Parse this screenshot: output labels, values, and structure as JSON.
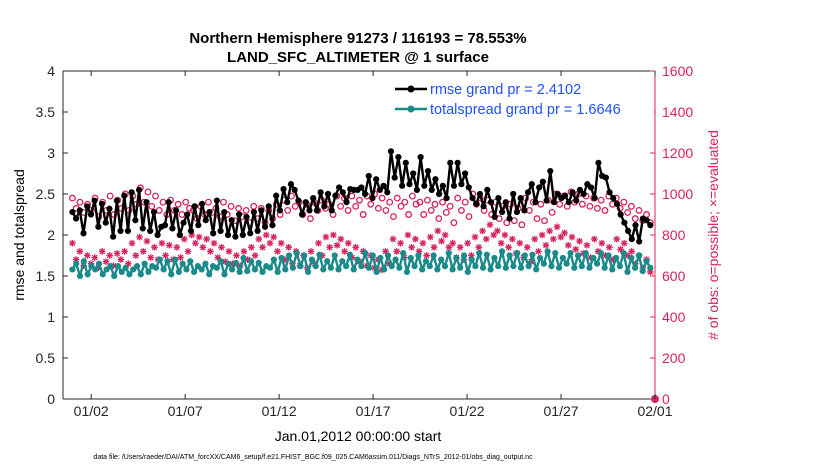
{
  "chart_data": {
    "type": "line",
    "title": "Northern Hemisphere 91273 / 116193 = 78.553%",
    "subtitle": "LAND_SFC_ALTIMETER @ 1 surface",
    "xlabel": "Jan.01,2012 00:00:00 start",
    "ylabel_left": "rmse and totalspread",
    "ylabel_right": "# of obs: o=possible; ×=evaluated",
    "footer": "data file: /Users/raeder/DAI/ATM_forcXX/CAM6_setup/f.e21.FHIST_BGC.f09_025.CAM6assim.011/Diags_NTrS_2012-01/obs_diag_output.nc",
    "xlim": [
      0.5,
      32.0
    ],
    "ylim_left": [
      0,
      4
    ],
    "ylim_right": [
      0,
      1600
    ],
    "x_ticks": [
      {
        "v": 2,
        "label": "01/02"
      },
      {
        "v": 7,
        "label": "01/07"
      },
      {
        "v": 12,
        "label": "01/12"
      },
      {
        "v": 17,
        "label": "01/17"
      },
      {
        "v": 22,
        "label": "01/22"
      },
      {
        "v": 27,
        "label": "01/27"
      },
      {
        "v": 32,
        "label": "02/01"
      }
    ],
    "y_ticks_left": [
      "0",
      "0.5",
      "1",
      "1.5",
      "2",
      "2.5",
      "3",
      "3.5",
      "4"
    ],
    "y_ticks_right": [
      "0",
      "200",
      "400",
      "600",
      "800",
      "1000",
      "1200",
      "1400",
      "1600"
    ],
    "colors": {
      "rmse": "#000000",
      "spread": "#1a8a8a",
      "obs": "#d6245e",
      "legend_text": "#1f4fff"
    },
    "series": [
      {
        "name": "rmse grand pr = 2.4102",
        "key": "rmse",
        "axis": "left",
        "values": [
          2.28,
          2.2,
          2.3,
          2.02,
          2.35,
          2.25,
          2.42,
          2.1,
          2.38,
          2.15,
          2.32,
          1.98,
          2.42,
          2.05,
          2.48,
          2.05,
          2.52,
          2.18,
          2.55,
          2.08,
          2.4,
          2.05,
          2.28,
          2.0,
          2.1,
          2.12,
          2.4,
          2.08,
          2.3,
          2.0,
          2.15,
          2.25,
          2.05,
          2.35,
          2.12,
          2.38,
          2.18,
          2.28,
          2.02,
          2.42,
          2.05,
          2.28,
          2.0,
          2.18,
          1.98,
          2.25,
          2.0,
          2.22,
          2.02,
          2.28,
          2.05,
          2.3,
          2.1,
          2.35,
          2.12,
          2.48,
          2.3,
          2.56,
          2.4,
          2.62,
          2.55,
          2.42,
          2.25,
          2.4,
          2.3,
          2.45,
          2.3,
          2.52,
          2.35,
          2.5,
          2.3,
          2.48,
          2.58,
          2.52,
          2.4,
          2.56,
          2.55,
          2.55,
          2.58,
          2.5,
          2.72,
          2.45,
          2.68,
          2.55,
          2.6,
          2.52,
          3.02,
          2.7,
          2.95,
          2.6,
          2.88,
          2.62,
          2.75,
          2.55,
          2.95,
          2.6,
          2.78,
          2.55,
          2.68,
          2.5,
          2.6,
          2.45,
          2.88,
          2.6,
          2.88,
          2.62,
          2.75,
          2.58,
          2.45,
          2.38,
          2.5,
          2.35,
          2.55,
          2.4,
          2.22,
          2.45,
          2.28,
          2.4,
          2.2,
          2.5,
          2.28,
          2.45,
          2.3,
          2.52,
          2.62,
          2.4,
          2.58,
          2.65,
          2.42,
          2.78,
          2.4,
          2.5,
          2.45,
          2.48,
          2.4,
          2.52,
          2.42,
          2.55,
          2.5,
          2.62,
          2.58,
          2.45,
          2.88,
          2.72,
          2.7,
          2.52,
          2.45,
          2.38,
          2.25,
          2.15,
          2.05,
          1.95,
          2.12,
          1.92,
          2.2,
          2.18,
          2.12
        ]
      },
      {
        "name": "totalspread grand pr = 1.6646",
        "key": "spread",
        "axis": "left",
        "values": [
          1.58,
          1.65,
          1.5,
          1.68,
          1.52,
          1.62,
          1.58,
          1.65,
          1.52,
          1.58,
          1.62,
          1.5,
          1.62,
          1.55,
          1.6,
          1.52,
          1.58,
          1.62,
          1.52,
          1.65,
          1.55,
          1.62,
          1.6,
          1.7,
          1.58,
          1.68,
          1.52,
          1.7,
          1.55,
          1.65,
          1.58,
          1.68,
          1.55,
          1.62,
          1.58,
          1.65,
          1.52,
          1.62,
          1.6,
          1.68,
          1.52,
          1.65,
          1.58,
          1.66,
          1.55,
          1.72,
          1.56,
          1.68,
          1.58,
          1.66,
          1.55,
          1.62,
          1.6,
          1.7,
          1.55,
          1.72,
          1.58,
          1.75,
          1.6,
          1.78,
          1.62,
          1.75,
          1.55,
          1.7,
          1.62,
          1.76,
          1.58,
          1.68,
          1.6,
          1.75,
          1.58,
          1.68,
          1.62,
          1.76,
          1.58,
          1.7,
          1.62,
          1.78,
          1.6,
          1.75,
          1.55,
          1.72,
          1.58,
          1.75,
          1.62,
          1.7,
          1.6,
          1.78,
          1.55,
          1.72,
          1.62,
          1.75,
          1.58,
          1.68,
          1.62,
          1.75,
          1.58,
          1.7,
          1.62,
          1.78,
          1.58,
          1.72,
          1.6,
          1.75,
          1.55,
          1.7,
          1.62,
          1.78,
          1.6,
          1.76,
          1.58,
          1.72,
          1.62,
          1.8,
          1.6,
          1.75,
          1.62,
          1.78,
          1.6,
          1.75,
          1.62,
          1.76,
          1.58,
          1.72,
          1.65,
          1.8,
          1.62,
          1.78,
          1.6,
          1.72,
          1.65,
          1.78,
          1.6,
          1.75,
          1.62,
          1.78,
          1.6,
          1.72,
          1.65,
          1.78,
          1.6,
          1.75,
          1.58,
          1.72,
          1.62,
          1.78,
          1.55,
          1.72,
          1.6,
          1.75,
          1.56,
          1.68,
          1.6
        ]
      },
      {
        "name": "possible",
        "key": "possible",
        "axis": "right",
        "marker": "circle",
        "values": [
          980,
          930,
          960,
          910,
          950,
          920,
          980,
          890,
          960,
          920,
          990,
          900,
          970,
          930,
          1000,
          920,
          990,
          950,
          1030,
          960,
          1010,
          940,
          990,
          920,
          960,
          900,
          970,
          920,
          950,
          900,
          960,
          930,
          920,
          880,
          940,
          900,
          960,
          910,
          930,
          890,
          960,
          900,
          940,
          870,
          930,
          890,
          920,
          860,
          940,
          880,
          930,
          860,
          920,
          880,
          950,
          900,
          970,
          920,
          990,
          940,
          960,
          900,
          950,
          880,
          960,
          920,
          970,
          930,
          950,
          900,
          990,
          940,
          980,
          920,
          990,
          940,
          970,
          900,
          990,
          950,
          1000,
          930,
          980,
          920,
          960,
          890,
          980,
          940,
          960,
          900,
          990,
          950,
          960,
          900,
          970,
          920,
          950,
          880,
          960,
          910,
          940,
          860,
          980,
          920,
          960,
          890,
          1000,
          950,
          980,
          920,
          970,
          900,
          960,
          880,
          940,
          860,
          950,
          870,
          930,
          850,
          980,
          920,
          960,
          880,
          950,
          870,
          970,
          910,
          1000,
          950,
          990,
          940,
          1010,
          960,
          1000,
          950,
          990,
          940,
          980,
          930,
          970,
          920,
          990,
          950,
          980,
          930,
          960,
          910,
          940,
          880,
          920,
          870,
          900,
          860
        ]
      },
      {
        "name": "evaluated",
        "key": "evaluated",
        "axis": "right",
        "marker": "x",
        "values": [
          760,
          680,
          720,
          650,
          700,
          660,
          690,
          640,
          720,
          670,
          700,
          650,
          710,
          680,
          720,
          660,
          760,
          700,
          790,
          720,
          770,
          690,
          740,
          680,
          760,
          700,
          750,
          680,
          740,
          690,
          780,
          720,
          800,
          760,
          790,
          740,
          780,
          720,
          760,
          690,
          740,
          670,
          720,
          660,
          700,
          650,
          720,
          680,
          740,
          700,
          780,
          740,
          800,
          760,
          790,
          720,
          760,
          680,
          740,
          660,
          720,
          650,
          700,
          640,
          720,
          660,
          760,
          700,
          790,
          740,
          800,
          750,
          780,
          720,
          760,
          690,
          740,
          670,
          720,
          650,
          700,
          640,
          680,
          630,
          720,
          660,
          780,
          720,
          760,
          690,
          800,
          740,
          780,
          720,
          760,
          700,
          790,
          740,
          820,
          770,
          800,
          740,
          760,
          690,
          740,
          680,
          760,
          700,
          790,
          740,
          820,
          780,
          850,
          800,
          820,
          760,
          800,
          740,
          780,
          710,
          760,
          690,
          740,
          670,
          780,
          720,
          800,
          750,
          820,
          780,
          840,
          790,
          810,
          750,
          790,
          730,
          770,
          710,
          750,
          690,
          780,
          720,
          760,
          700,
          740,
          680,
          780,
          730,
          760,
          700,
          720,
          660,
          700,
          640,
          680,
          620
        ]
      }
    ]
  },
  "legend": {
    "rmse_label": "rmse grand pr = 2.4102",
    "spread_label": "totalspread grand pr = 1.6646"
  }
}
